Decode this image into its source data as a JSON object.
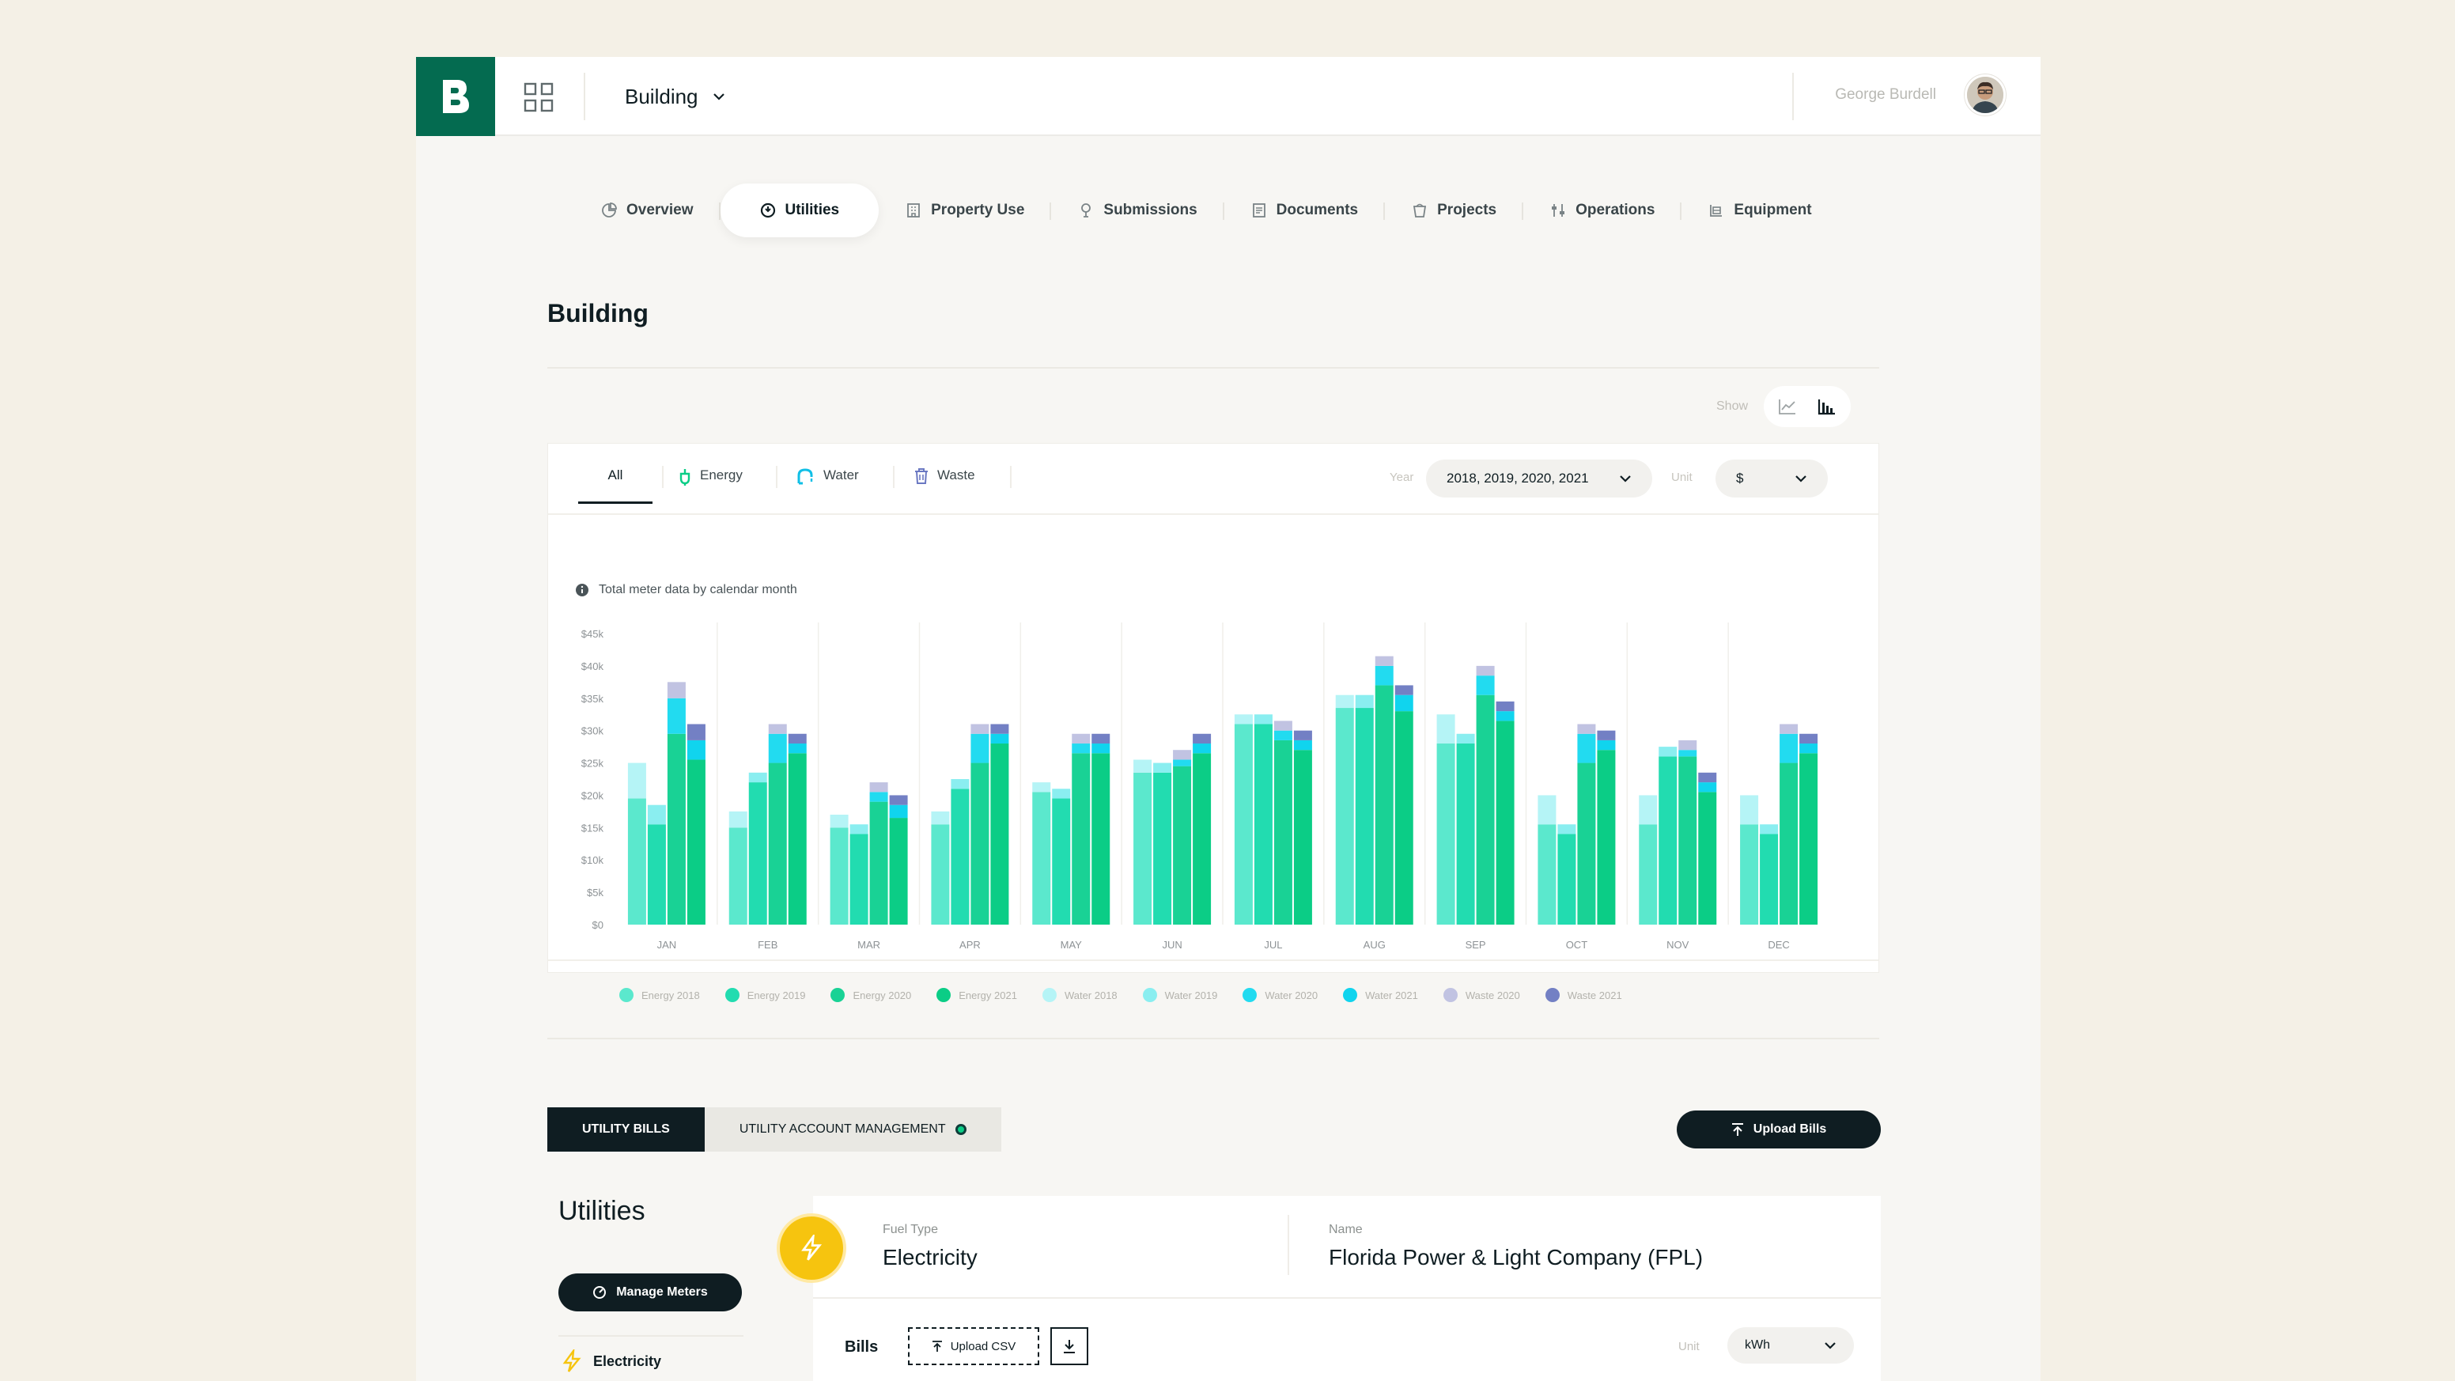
{
  "header": {
    "building_label": "Building",
    "user_name": "George Burdell"
  },
  "tabs": [
    {
      "label": "Overview",
      "icon": "pie-chart-icon"
    },
    {
      "label": "Utilities",
      "icon": "utilities-icon",
      "active": true
    },
    {
      "label": "Property Use",
      "icon": "building-icon"
    },
    {
      "label": "Submissions",
      "icon": "pin-icon"
    },
    {
      "label": "Documents",
      "icon": "document-icon"
    },
    {
      "label": "Projects",
      "icon": "bucket-icon"
    },
    {
      "label": "Operations",
      "icon": "sliders-icon"
    },
    {
      "label": "Equipment",
      "icon": "equipment-icon"
    }
  ],
  "page_title": "Building",
  "show": {
    "label": "Show",
    "options": [
      "line-chart-icon",
      "bar-chart-icon"
    ],
    "selected": "bar-chart-icon"
  },
  "filters": {
    "tabs": [
      "All",
      "Energy",
      "Water",
      "Waste"
    ],
    "active": "All",
    "year_label": "Year",
    "year_value": "2018, 2019, 2020, 2021",
    "unit_label": "Unit",
    "unit_value": "$"
  },
  "chart_note": "Total meter data by calendar month",
  "colors": {
    "energy2018": "#5be8cd",
    "energy2019": "#22dcb0",
    "energy2020": "#19d295",
    "energy2021": "#0bcd86",
    "water2018": "#b5f4f6",
    "water2019": "#8aeef0",
    "water2020": "#22dbf0",
    "water2021": "#10d4ee",
    "waste2020": "#c1c3e2",
    "waste2021": "#7380c4"
  },
  "chart_data": {
    "type": "bar",
    "stacked": true,
    "categories": [
      "JAN",
      "FEB",
      "MAR",
      "APR",
      "MAY",
      "JUN",
      "JUL",
      "AUG",
      "SEP",
      "OCT",
      "NOV",
      "DEC"
    ],
    "years": [
      "2018",
      "2019",
      "2020",
      "2021"
    ],
    "y_ticks": [
      "$0",
      "$5k",
      "$10k",
      "$15k",
      "$20k",
      "$25k",
      "$30k",
      "$35k",
      "$40k",
      "$45k"
    ],
    "ylim": [
      0,
      45000
    ],
    "legend": [
      "Energy 2018",
      "Energy 2019",
      "Energy 2020",
      "Energy 2021",
      "Water 2018",
      "Water 2019",
      "Water 2020",
      "Water 2021",
      "Waste 2020",
      "Waste 2021"
    ],
    "legend_position": "bottom",
    "values": {
      "JAN": [
        {
          "year": "2018",
          "energy": 19500,
          "water": 5500,
          "waste": 0
        },
        {
          "year": "2019",
          "energy": 15500,
          "water": 3000,
          "waste": 0
        },
        {
          "year": "2020",
          "energy": 29500,
          "water": 5500,
          "waste": 2500
        },
        {
          "year": "2021",
          "energy": 25500,
          "water": 3000,
          "waste": 2500
        }
      ],
      "FEB": [
        {
          "year": "2018",
          "energy": 15000,
          "water": 2500,
          "waste": 0
        },
        {
          "year": "2019",
          "energy": 22000,
          "water": 1500,
          "waste": 0
        },
        {
          "year": "2020",
          "energy": 25000,
          "water": 4500,
          "waste": 1500
        },
        {
          "year": "2021",
          "energy": 26500,
          "water": 1500,
          "waste": 1500
        }
      ],
      "MAR": [
        {
          "year": "2018",
          "energy": 15000,
          "water": 2000,
          "waste": 0
        },
        {
          "year": "2019",
          "energy": 14000,
          "water": 1500,
          "waste": 0
        },
        {
          "year": "2020",
          "energy": 19000,
          "water": 1500,
          "waste": 1500
        },
        {
          "year": "2021",
          "energy": 16500,
          "water": 2000,
          "waste": 1500
        }
      ],
      "APR": [
        {
          "year": "2018",
          "energy": 15500,
          "water": 2000,
          "waste": 0
        },
        {
          "year": "2019",
          "energy": 21000,
          "water": 1500,
          "waste": 0
        },
        {
          "year": "2020",
          "energy": 25000,
          "water": 4500,
          "waste": 1500
        },
        {
          "year": "2021",
          "energy": 28000,
          "water": 1500,
          "waste": 1500
        }
      ],
      "MAY": [
        {
          "year": "2018",
          "energy": 20500,
          "water": 1500,
          "waste": 0
        },
        {
          "year": "2019",
          "energy": 19500,
          "water": 1500,
          "waste": 0
        },
        {
          "year": "2020",
          "energy": 26500,
          "water": 1500,
          "waste": 1500
        },
        {
          "year": "2021",
          "energy": 26500,
          "water": 1500,
          "waste": 1500
        }
      ],
      "JUN": [
        {
          "year": "2018",
          "energy": 23500,
          "water": 2000,
          "waste": 0
        },
        {
          "year": "2019",
          "energy": 23500,
          "water": 1500,
          "waste": 0
        },
        {
          "year": "2020",
          "energy": 24500,
          "water": 1000,
          "waste": 1500
        },
        {
          "year": "2021",
          "energy": 26500,
          "water": 1500,
          "waste": 1500
        }
      ],
      "JUL": [
        {
          "year": "2018",
          "energy": 31000,
          "water": 1500,
          "waste": 0
        },
        {
          "year": "2019",
          "energy": 31000,
          "water": 1500,
          "waste": 0
        },
        {
          "year": "2020",
          "energy": 28500,
          "water": 1500,
          "waste": 1500
        },
        {
          "year": "2021",
          "energy": 27000,
          "water": 1500,
          "waste": 1500
        }
      ],
      "AUG": [
        {
          "year": "2018",
          "energy": 33500,
          "water": 2000,
          "waste": 0
        },
        {
          "year": "2019",
          "energy": 33500,
          "water": 2000,
          "waste": 0
        },
        {
          "year": "2020",
          "energy": 37000,
          "water": 3000,
          "waste": 1500
        },
        {
          "year": "2021",
          "energy": 33000,
          "water": 2500,
          "waste": 1500
        }
      ],
      "SEP": [
        {
          "year": "2018",
          "energy": 28000,
          "water": 4500,
          "waste": 0
        },
        {
          "year": "2019",
          "energy": 28000,
          "water": 1500,
          "waste": 0
        },
        {
          "year": "2020",
          "energy": 35500,
          "water": 3000,
          "waste": 1500
        },
        {
          "year": "2021",
          "energy": 31500,
          "water": 1500,
          "waste": 1500
        }
      ],
      "OCT": [
        {
          "year": "2018",
          "energy": 15500,
          "water": 4500,
          "waste": 0
        },
        {
          "year": "2019",
          "energy": 14000,
          "water": 1500,
          "waste": 0
        },
        {
          "year": "2020",
          "energy": 25000,
          "water": 4500,
          "waste": 1500
        },
        {
          "year": "2021",
          "energy": 27000,
          "water": 1500,
          "waste": 1500
        }
      ],
      "NOV": [
        {
          "year": "2018",
          "energy": 15500,
          "water": 4500,
          "waste": 0
        },
        {
          "year": "2019",
          "energy": 26000,
          "water": 1500,
          "waste": 0
        },
        {
          "year": "2020",
          "energy": 26000,
          "water": 1000,
          "waste": 1500
        },
        {
          "year": "2021",
          "energy": 20500,
          "water": 1500,
          "waste": 1500
        }
      ],
      "DEC": [
        {
          "year": "2018",
          "energy": 15500,
          "water": 4500,
          "waste": 0
        },
        {
          "year": "2019",
          "energy": 14000,
          "water": 1500,
          "waste": 0
        },
        {
          "year": "2020",
          "energy": 25000,
          "water": 4500,
          "waste": 1500
        },
        {
          "year": "2021",
          "energy": 26500,
          "water": 1500,
          "waste": 1500
        }
      ]
    }
  },
  "bills": {
    "tab_bills": "UTILITY BILLS",
    "tab_accounts": "UTILITY ACCOUNT MANAGEMENT",
    "upload_bills": "Upload Bills",
    "utilities_title": "Utilities",
    "manage_meters": "Manage Meters",
    "side_item": "Electricity",
    "fuel_type_label": "Fuel Type",
    "fuel_type_value": "Electricity",
    "name_label": "Name",
    "name_value": "Florida Power & Light Company (FPL)",
    "bills_label": "Bills",
    "upload_csv": "Upload CSV",
    "unit_label": "Unit",
    "unit_value": "kWh"
  }
}
